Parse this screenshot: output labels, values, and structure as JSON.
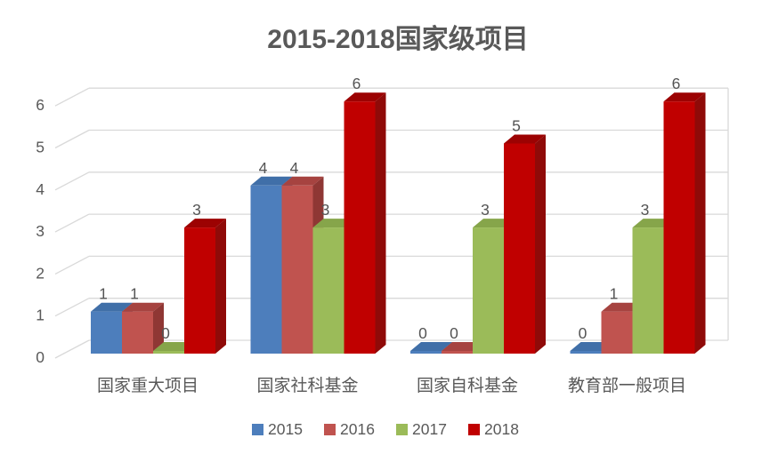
{
  "chart_data": {
    "type": "bar",
    "style": "3d-clustered-column",
    "title": "2015-2018国家级项目",
    "categories": [
      "国家重大项目",
      "国家社科基金",
      "国家自科基金",
      "教育部一般项目"
    ],
    "series": [
      {
        "name": "2015",
        "color": "#4d7ebc",
        "top_color": "#406fa8",
        "side_color": "#386197",
        "values": [
          1,
          4,
          0,
          0
        ]
      },
      {
        "name": "2016",
        "color": "#c0534f",
        "top_color": "#a64340",
        "side_color": "#8f3734",
        "values": [
          1,
          4,
          0,
          1
        ]
      },
      {
        "name": "2017",
        "color": "#9bbb59",
        "top_color": "#86a54a",
        "side_color": "#75923c",
        "values": [
          0,
          3,
          3,
          3
        ]
      },
      {
        "name": "2018",
        "color": "#c00000",
        "top_color": "#9c0202",
        "side_color": "#8f0a08",
        "values": [
          3,
          6,
          5,
          6
        ]
      }
    ],
    "data_labels_visible": true,
    "xlabel": "",
    "ylabel": "",
    "ylim": [
      0,
      6
    ],
    "yticks": [
      "0",
      "1",
      "2",
      "3",
      "4",
      "5",
      "6"
    ],
    "grid": true,
    "legend_position": "bottom",
    "text_color": "#595959",
    "grid_color": "#d9d9d9",
    "background_color": "#ffffff"
  }
}
